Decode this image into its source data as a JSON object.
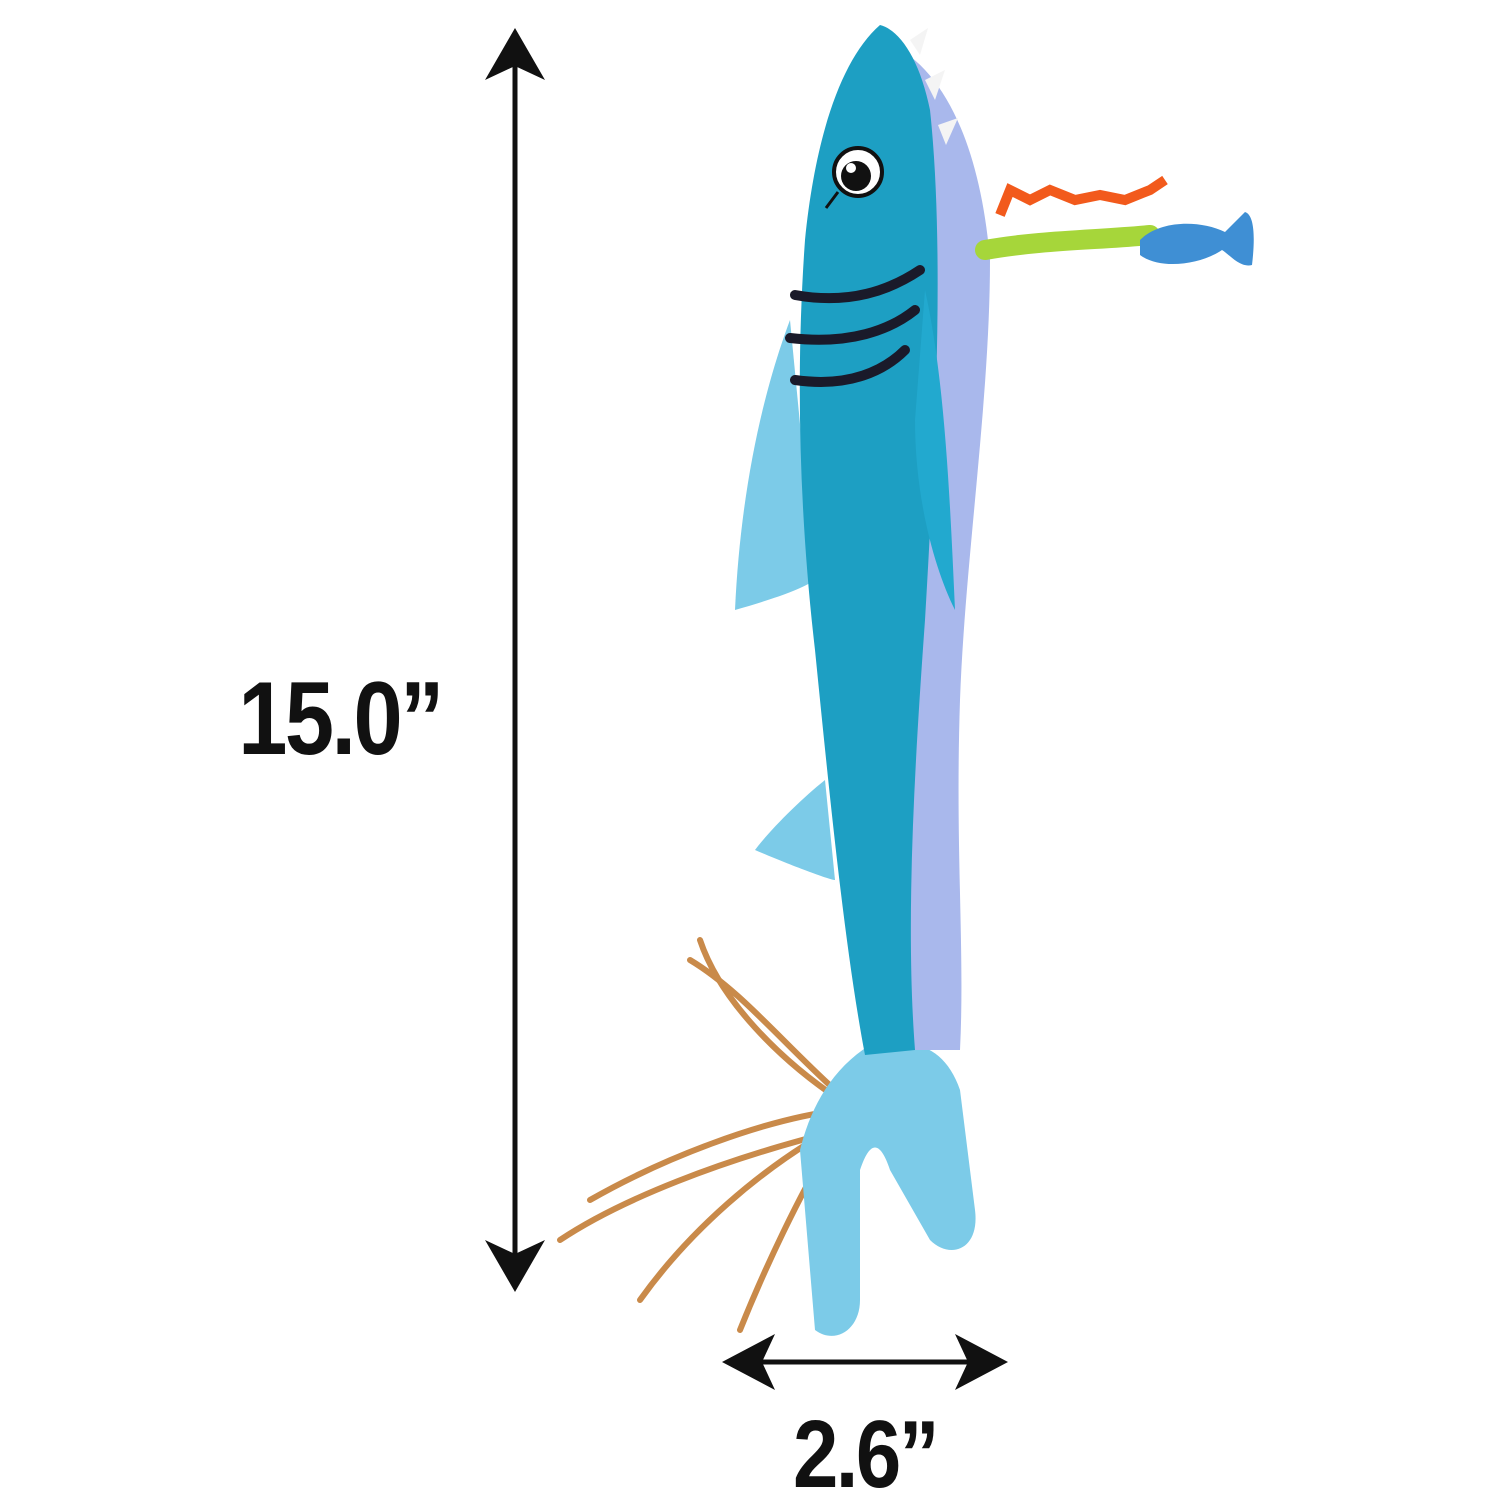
{
  "product": {
    "height_label": "15.0”",
    "width_label": "2.6”"
  },
  "colors": {
    "body": "#1d9fc3",
    "belly": "#a9b8ec",
    "fins": "#7ccbe8",
    "feather": "#c98a4a",
    "ribbon_orange": "#f25a1c",
    "ribbon_green": "#a6d63a",
    "small_fish": "#3f8fd4",
    "arrows": "#111111"
  }
}
